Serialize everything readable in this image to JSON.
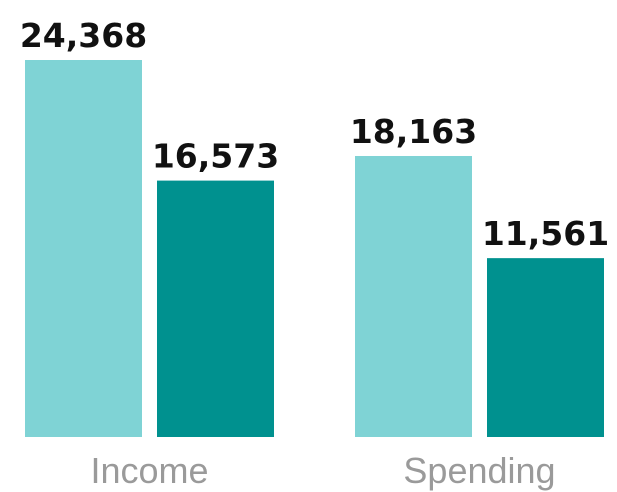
{
  "chart_data": {
    "type": "bar",
    "categories": [
      "Income",
      "Spending"
    ],
    "series": [
      {
        "values": [
          24368,
          18163
        ],
        "color": "#7fd3d5"
      },
      {
        "values": [
          16573,
          11561
        ],
        "color": "#00918f"
      }
    ],
    "value_labels": [
      [
        "24,368",
        "18,163"
      ],
      [
        "16,573",
        "11,561"
      ]
    ],
    "ylim": [
      0,
      24368
    ],
    "grid": false,
    "legend": "none"
  }
}
